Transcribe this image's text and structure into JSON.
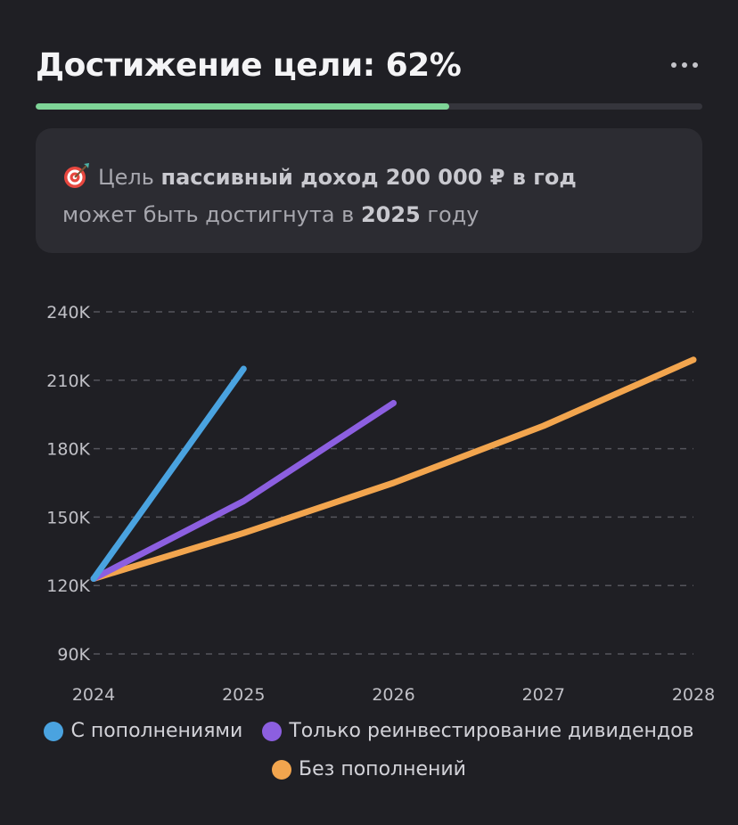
{
  "header": {
    "title": "Достижение цели: 62%",
    "progress_value": 0.62
  },
  "goal": {
    "prefix": "Цель",
    "goal_name": "пассивный доход 200 000 ₽ в год",
    "middle": "может быть достигнута в",
    "year": "2025",
    "suffix": "году"
  },
  "colors": {
    "background": "#1f1f24",
    "progress": "#7ed497",
    "card": "#2c2c32"
  },
  "chart_data": {
    "type": "line",
    "x_ticks": [
      "2024",
      "2025",
      "2026",
      "2027",
      "2028"
    ],
    "y_ticks": [
      "90K",
      "120K",
      "150K",
      "180K",
      "210K",
      "240K"
    ],
    "xlim": [
      2024,
      2028
    ],
    "ylim": [
      90000,
      240000
    ],
    "grid": true,
    "legend_position": "bottom",
    "series": [
      {
        "name": "С пополнениями",
        "color": "#4aa3e0",
        "points": [
          [
            2024,
            123000
          ],
          [
            2025,
            215000
          ]
        ]
      },
      {
        "name": "Только реинвестирование дивидендов",
        "color": "#8c5fe0",
        "points": [
          [
            2024,
            123000
          ],
          [
            2025,
            157000
          ],
          [
            2026,
            200000
          ]
        ]
      },
      {
        "name": "Без пополнений",
        "color": "#f2a54e",
        "points": [
          [
            2024,
            123000
          ],
          [
            2025,
            143000
          ],
          [
            2026,
            165000
          ],
          [
            2027,
            190000
          ],
          [
            2028,
            219000
          ]
        ]
      }
    ]
  }
}
